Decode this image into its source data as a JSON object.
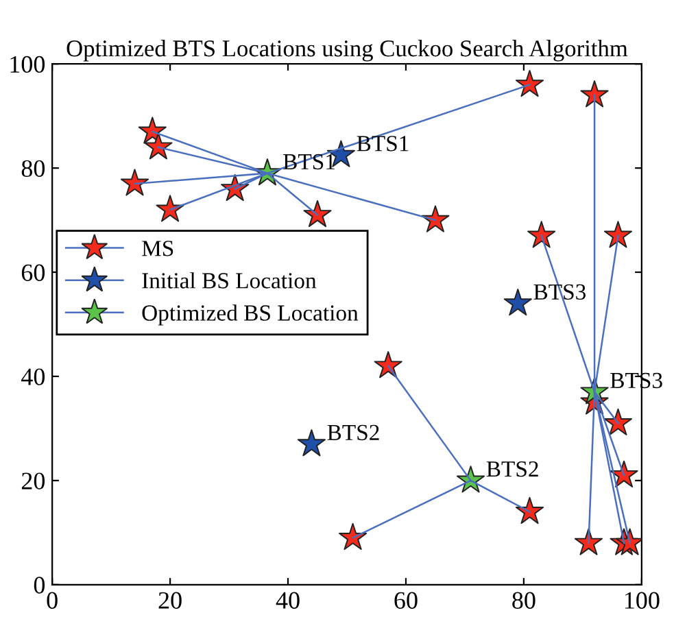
{
  "chart_data": {
    "type": "scatter",
    "title": "Optimized BTS Locations using Cuckoo Search Algorithm",
    "xlim": [
      0,
      100
    ],
    "ylim": [
      0,
      100
    ],
    "xticks": [
      0,
      20,
      40,
      60,
      80,
      100
    ],
    "yticks": [
      0,
      20,
      40,
      60,
      80,
      100
    ],
    "grid": false,
    "legend": "left",
    "marker": "star",
    "series": [
      {
        "name": "MS",
        "color": "#f42a1c",
        "x": [
          17,
          18,
          14,
          20,
          31,
          45,
          65,
          81,
          57,
          51,
          81,
          92,
          83,
          96,
          92,
          96,
          97,
          91,
          97,
          98
        ],
        "values": [
          87,
          84,
          77,
          72,
          76,
          71,
          70,
          96,
          42,
          9,
          14,
          94,
          67,
          67,
          35,
          31,
          21,
          8,
          8,
          8
        ]
      },
      {
        "name": "Initial BS Location",
        "color": "#1f4fa8",
        "x": [
          49,
          44,
          79
        ],
        "values": [
          82.5,
          27,
          54
        ]
      },
      {
        "name": "Optimized BS Location",
        "color": "#5cc24a",
        "x": [
          36.5,
          71,
          92
        ],
        "values": [
          79,
          20,
          37
        ]
      },
      {
        "type": "line",
        "marker": "none",
        "color": "#4a6fbf",
        "x": [
          17,
          36.5
        ],
        "values": [
          87,
          79
        ]
      },
      {
        "type": "line",
        "marker": "none",
        "color": "#4a6fbf",
        "x": [
          18,
          36.5
        ],
        "values": [
          84,
          79
        ]
      },
      {
        "type": "line",
        "marker": "none",
        "color": "#4a6fbf",
        "x": [
          14,
          36.5
        ],
        "values": [
          77,
          79
        ]
      },
      {
        "type": "line",
        "marker": "none",
        "color": "#4a6fbf",
        "x": [
          20,
          36.5
        ],
        "values": [
          72,
          79
        ]
      },
      {
        "type": "line",
        "marker": "none",
        "color": "#4a6fbf",
        "x": [
          31,
          36.5
        ],
        "values": [
          76,
          79
        ]
      },
      {
        "type": "line",
        "marker": "none",
        "color": "#4a6fbf",
        "x": [
          45,
          36.5
        ],
        "values": [
          71,
          79
        ]
      },
      {
        "type": "line",
        "marker": "none",
        "color": "#4a6fbf",
        "x": [
          65,
          36.5
        ],
        "values": [
          70,
          79
        ]
      },
      {
        "type": "line",
        "marker": "none",
        "color": "#4a6fbf",
        "x": [
          81,
          36.5
        ],
        "values": [
          96,
          79
        ]
      },
      {
        "type": "line",
        "marker": "none",
        "color": "#4a6fbf",
        "x": [
          57,
          71
        ],
        "values": [
          42,
          20
        ]
      },
      {
        "type": "line",
        "marker": "none",
        "color": "#4a6fbf",
        "x": [
          51,
          71
        ],
        "values": [
          9,
          20
        ]
      },
      {
        "type": "line",
        "marker": "none",
        "color": "#4a6fbf",
        "x": [
          81,
          71
        ],
        "values": [
          14,
          20
        ]
      },
      {
        "type": "line",
        "marker": "none",
        "color": "#4a6fbf",
        "x": [
          92,
          92
        ],
        "values": [
          94,
          37
        ]
      },
      {
        "type": "line",
        "marker": "none",
        "color": "#4a6fbf",
        "x": [
          83,
          92
        ],
        "values": [
          67,
          37
        ]
      },
      {
        "type": "line",
        "marker": "none",
        "color": "#4a6fbf",
        "x": [
          96,
          92
        ],
        "values": [
          67,
          37
        ]
      },
      {
        "type": "line",
        "marker": "none",
        "color": "#4a6fbf",
        "x": [
          96,
          92
        ],
        "values": [
          31,
          37
        ]
      },
      {
        "type": "line",
        "marker": "none",
        "color": "#4a6fbf",
        "x": [
          97,
          92
        ],
        "values": [
          21,
          37
        ]
      },
      {
        "type": "line",
        "marker": "none",
        "color": "#4a6fbf",
        "x": [
          91,
          92
        ],
        "values": [
          8,
          37
        ]
      },
      {
        "type": "line",
        "marker": "none",
        "color": "#4a6fbf",
        "x": [
          97,
          92
        ],
        "values": [
          8,
          37
        ]
      },
      {
        "type": "line",
        "marker": "none",
        "color": "#4a6fbf",
        "x": [
          98,
          92
        ],
        "values": [
          8,
          37
        ]
      }
    ],
    "annotations": [
      {
        "text": "BTS1",
        "x": 49,
        "y": 82.5
      },
      {
        "text": "BTS2",
        "x": 44,
        "y": 27
      },
      {
        "text": "BTS3",
        "x": 79,
        "y": 54
      },
      {
        "text": "BTS1",
        "x": 36.5,
        "y": 79
      },
      {
        "text": "BTS2",
        "x": 71,
        "y": 20
      },
      {
        "text": "BTS3",
        "x": 92,
        "y": 37
      }
    ]
  }
}
